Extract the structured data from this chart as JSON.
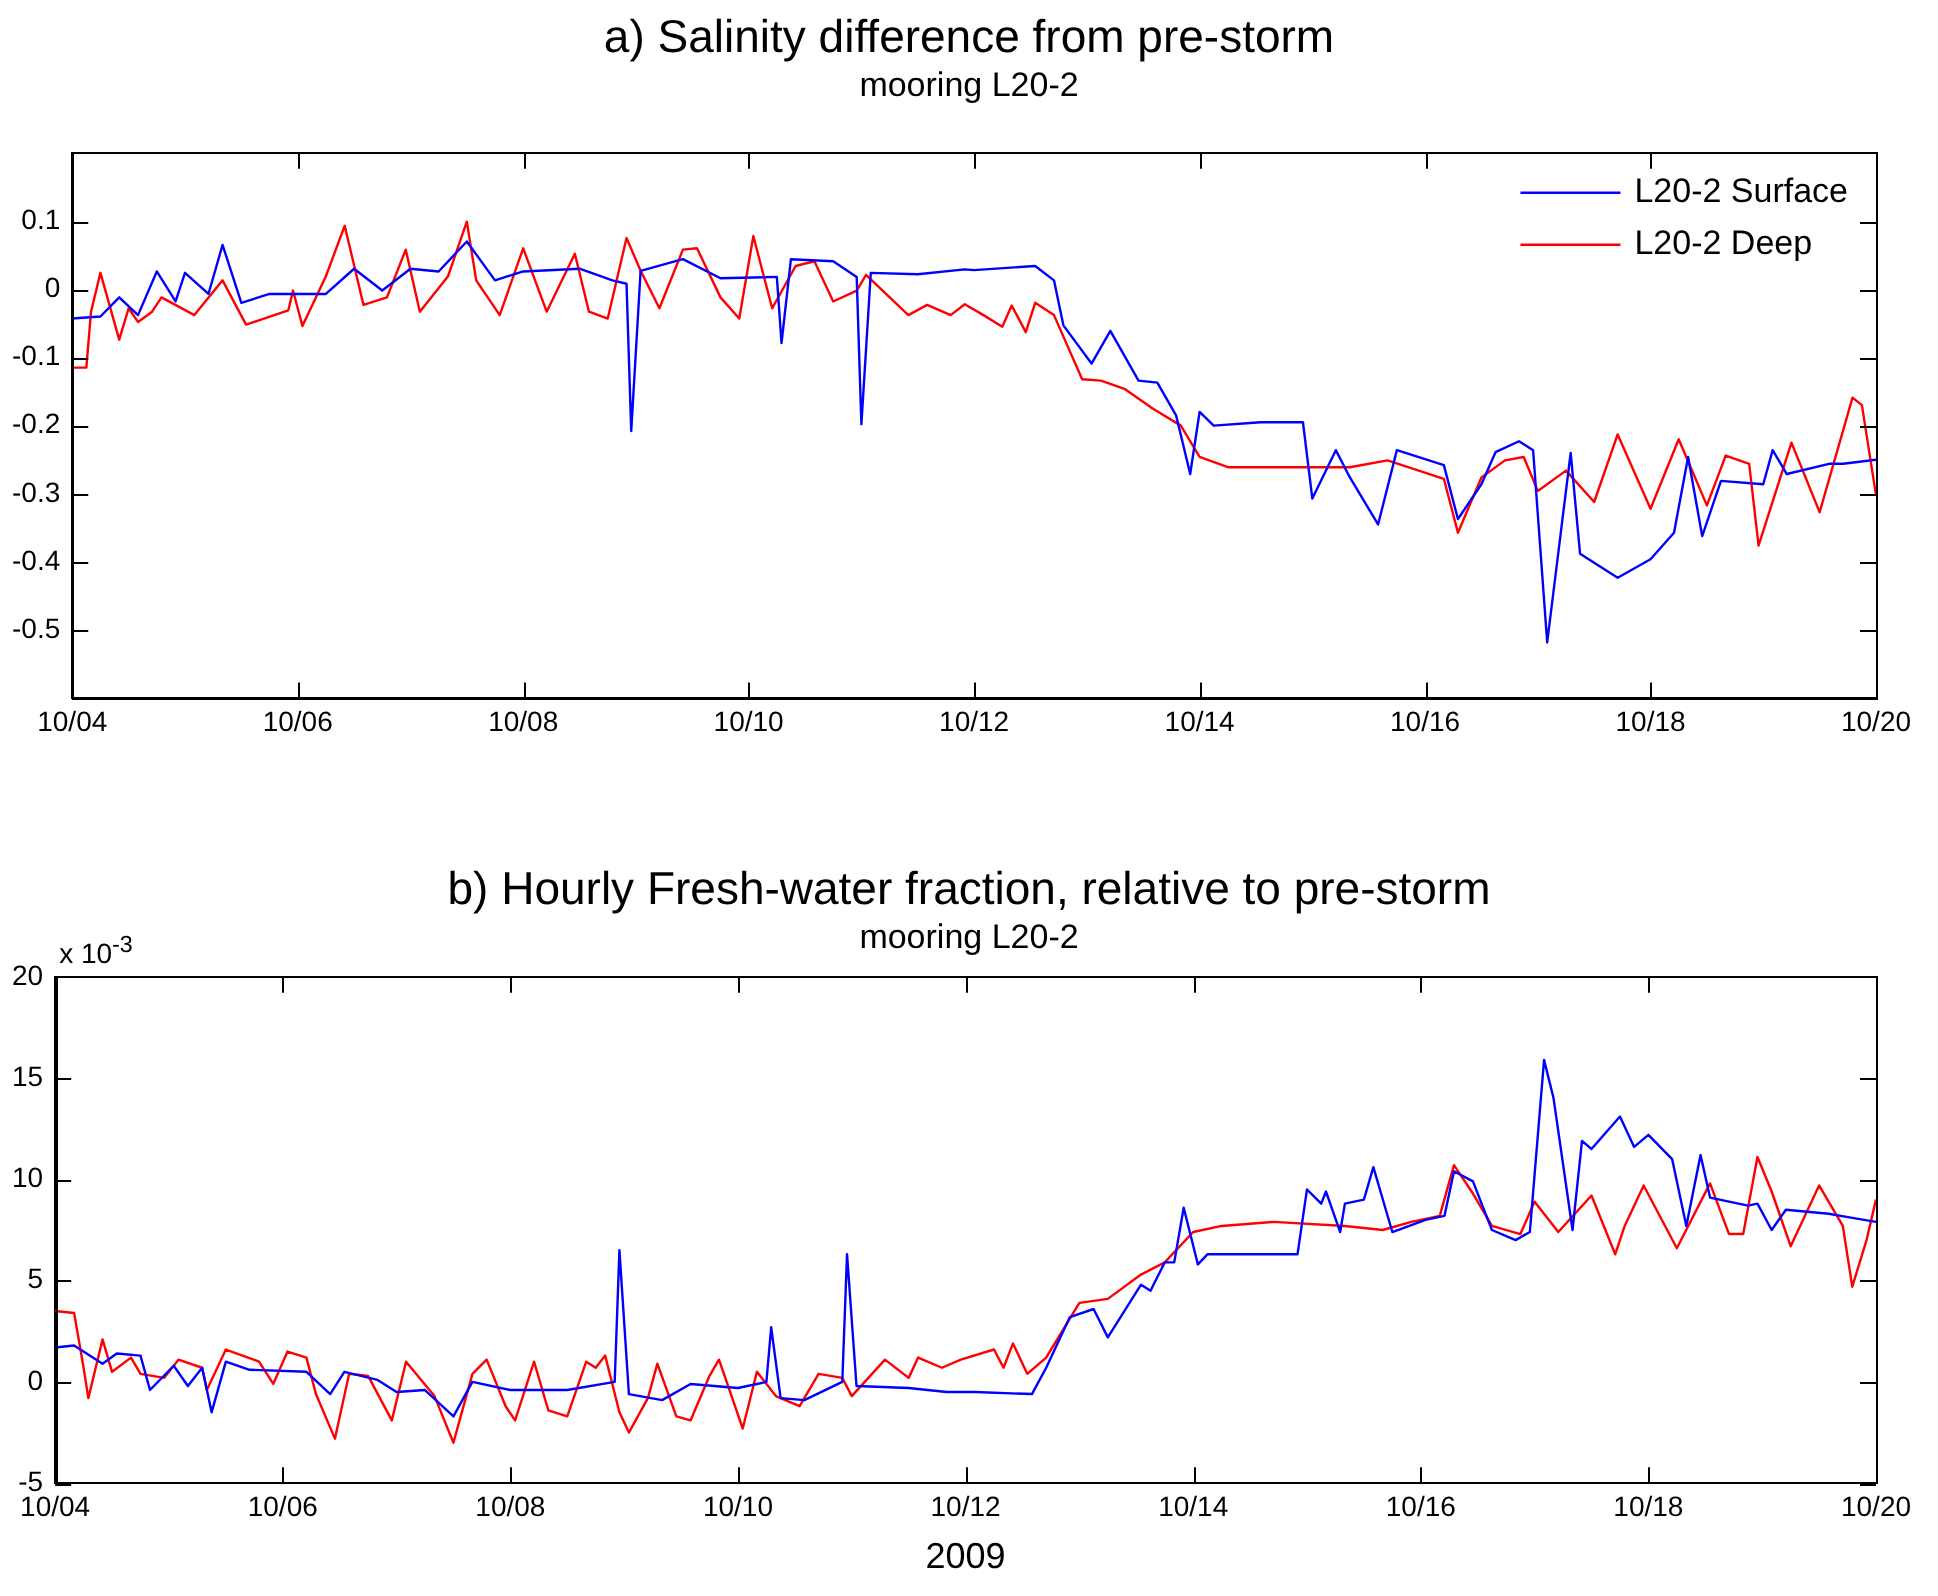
{
  "chart_data": [
    {
      "type": "line",
      "title": "a) Salinity difference from pre-storm",
      "subtitle": "mooring L20-2",
      "legend": "top right",
      "grid": false,
      "xlim": [
        "2009-10-04",
        "2009-10-20"
      ],
      "xticks": [
        {
          "value": "2009-10-04",
          "label": "10/04"
        },
        {
          "value": "2009-10-06",
          "label": "10/06"
        },
        {
          "value": "2009-10-08",
          "label": "10/08"
        },
        {
          "value": "2009-10-10",
          "label": "10/10"
        },
        {
          "value": "2009-10-12",
          "label": "10/12"
        },
        {
          "value": "2009-10-14",
          "label": "10/14"
        },
        {
          "value": "2009-10-16",
          "label": "10/16"
        },
        {
          "value": "2009-10-18",
          "label": "10/18"
        },
        {
          "value": "2009-10-20",
          "label": "10/20"
        }
      ],
      "ylim": [
        -0.6,
        0.2
      ],
      "yticks": [
        -0.5,
        -0.4,
        -0.3,
        -0.2,
        -0.1,
        0,
        0.1
      ],
      "series": [
        {
          "name": "L20-2 Surface",
          "color": "#0000ff",
          "x": [
            "2009-10-04T00:00",
            "2009-10-04T06:00",
            "2009-10-04T10:00",
            "2009-10-04T14:00",
            "2009-10-04T18:00",
            "2009-10-04T22:00",
            "2009-10-05T00:00",
            "2009-10-05T05:00",
            "2009-10-05T08:00",
            "2009-10-05T12:00",
            "2009-10-05T18:00",
            "2009-10-06T06:00",
            "2009-10-06T12:00",
            "2009-10-06T18:00",
            "2009-10-07T00:00",
            "2009-10-07T06:00",
            "2009-10-07T12:00",
            "2009-10-07T18:00",
            "2009-10-08T00:00",
            "2009-10-08T12:00",
            "2009-10-08T19:00",
            "2009-10-08T22:00",
            "2009-10-08T23:00",
            "2009-10-09T01:00",
            "2009-10-09T10:00",
            "2009-10-09T18:00",
            "2009-10-10T06:00",
            "2009-10-10T07:00",
            "2009-10-10T09:00",
            "2009-10-10T18:00",
            "2009-10-10T23:00",
            "2009-10-11T00:00",
            "2009-10-11T02:00",
            "2009-10-11T12:00",
            "2009-10-11T22:00",
            "2009-10-12T00:00",
            "2009-10-12T13:00",
            "2009-10-12T17:00",
            "2009-10-12T19:00",
            "2009-10-13T01:00",
            "2009-10-13T05:00",
            "2009-10-13T11:00",
            "2009-10-13T15:00",
            "2009-10-13T19:00",
            "2009-10-13T22:00",
            "2009-10-14T00:00",
            "2009-10-14T03:00",
            "2009-10-14T13:00",
            "2009-10-14T22:00",
            "2009-10-15T00:00",
            "2009-10-15T05:00",
            "2009-10-15T08:00",
            "2009-10-15T14:00",
            "2009-10-15T18:00",
            "2009-10-16T04:00",
            "2009-10-16T07:00",
            "2009-10-16T12:00",
            "2009-10-16T15:00",
            "2009-10-16T20:00",
            "2009-10-16T23:00",
            "2009-10-17T02:00",
            "2009-10-17T07:00",
            "2009-10-17T09:00",
            "2009-10-17T17:00",
            "2009-10-18T00:00",
            "2009-10-18T05:00",
            "2009-10-18T08:00",
            "2009-10-18T11:00",
            "2009-10-18T15:00",
            "2009-10-19T00:00",
            "2009-10-19T02:00",
            "2009-10-19T05:00",
            "2009-10-19T14:00",
            "2009-10-19T17:00",
            "2009-10-20T00:00"
          ],
          "values": [
            -0.043,
            -0.04,
            -0.012,
            -0.038,
            0.026,
            -0.018,
            0.024,
            -0.007,
            0.065,
            -0.02,
            -0.007,
            -0.007,
            0.03,
            -0.002,
            0.03,
            0.026,
            0.07,
            0.013,
            0.026,
            0.03,
            0.013,
            0.008,
            -0.208,
            0.027,
            0.044,
            0.016,
            0.018,
            -0.079,
            0.044,
            0.041,
            0.018,
            -0.198,
            0.024,
            0.022,
            0.029,
            0.028,
            0.034,
            0.013,
            -0.053,
            -0.109,
            -0.061,
            -0.134,
            -0.137,
            -0.185,
            -0.271,
            -0.18,
            -0.2,
            -0.195,
            -0.195,
            -0.307,
            -0.236,
            -0.276,
            -0.345,
            -0.236,
            -0.258,
            -0.337,
            -0.286,
            -0.239,
            -0.223,
            -0.236,
            -0.518,
            -0.24,
            -0.388,
            -0.423,
            -0.396,
            -0.357,
            -0.246,
            -0.362,
            -0.281,
            -0.286,
            -0.236,
            -0.271,
            -0.256,
            -0.256,
            -0.25
          ]
        },
        {
          "name": "L20-2 Deep",
          "color": "#ff0000",
          "x": [
            "2009-10-04T00:00",
            "2009-10-04T03:00",
            "2009-10-04T04:00",
            "2009-10-04T06:00",
            "2009-10-04T10:00",
            "2009-10-04T12:00",
            "2009-10-04T14:00",
            "2009-10-04T17:00",
            "2009-10-04T19:00",
            "2009-10-05T02:00",
            "2009-10-05T08:00",
            "2009-10-05T13:00",
            "2009-10-05T22:00",
            "2009-10-05T23:00",
            "2009-10-06T01:00",
            "2009-10-06T06:00",
            "2009-10-06T10:00",
            "2009-10-06T14:00",
            "2009-10-06T19:00",
            "2009-10-06T23:00",
            "2009-10-07T02:00",
            "2009-10-07T08:00",
            "2009-10-07T12:00",
            "2009-10-07T14:00",
            "2009-10-07T19:00",
            "2009-10-08T00:00",
            "2009-10-08T05:00",
            "2009-10-08T11:00",
            "2009-10-08T14:00",
            "2009-10-08T18:00",
            "2009-10-08T22:00",
            "2009-10-09T01:00",
            "2009-10-09T05:00",
            "2009-10-09T10:00",
            "2009-10-09T13:00",
            "2009-10-09T18:00",
            "2009-10-09T22:00",
            "2009-10-10T01:00",
            "2009-10-10T05:00",
            "2009-10-10T10:00",
            "2009-10-10T14:00",
            "2009-10-10T18:00",
            "2009-10-10T23:00",
            "2009-10-11T01:00",
            "2009-10-11T10:00",
            "2009-10-11T14:00",
            "2009-10-11T19:00",
            "2009-10-11T22:00",
            "2009-10-12T02:00",
            "2009-10-12T06:00",
            "2009-10-12T08:00",
            "2009-10-12T11:00",
            "2009-10-12T13:00",
            "2009-10-12T17:00",
            "2009-10-12T23:00",
            "2009-10-13T03:00",
            "2009-10-13T08:00",
            "2009-10-13T14:00",
            "2009-10-13T20:00",
            "2009-10-14T00:00",
            "2009-10-14T06:00",
            "2009-10-14T17:00",
            "2009-10-15T08:00",
            "2009-10-15T16:00",
            "2009-10-16T04:00",
            "2009-10-16T07:00",
            "2009-10-16T12:00",
            "2009-10-16T17:00",
            "2009-10-16T21:00",
            "2009-10-17T00:00",
            "2009-10-17T06:00",
            "2009-10-17T12:00",
            "2009-10-17T17:00",
            "2009-10-18T00:00",
            "2009-10-18T06:00",
            "2009-10-18T12:00",
            "2009-10-18T16:00",
            "2009-10-18T21:00",
            "2009-10-18T23:00",
            "2009-10-19T06:00",
            "2009-10-19T12:00",
            "2009-10-19T19:00",
            "2009-10-19T21:00",
            "2009-10-20T00:00"
          ],
          "values": [
            -0.115,
            -0.115,
            -0.033,
            0.024,
            -0.074,
            -0.028,
            -0.048,
            -0.033,
            -0.012,
            -0.038,
            0.013,
            -0.052,
            -0.031,
            -0.002,
            -0.054,
            0.019,
            0.093,
            -0.023,
            -0.012,
            0.058,
            -0.033,
            0.019,
            0.099,
            0.013,
            -0.038,
            0.06,
            -0.033,
            0.052,
            -0.033,
            -0.043,
            0.075,
            0.027,
            -0.028,
            0.058,
            0.06,
            -0.012,
            -0.043,
            0.078,
            -0.028,
            0.034,
            0.041,
            -0.018,
            -0.002,
            0.021,
            -0.038,
            -0.023,
            -0.038,
            -0.022,
            -0.038,
            -0.055,
            -0.024,
            -0.063,
            -0.02,
            -0.038,
            -0.132,
            -0.134,
            -0.146,
            -0.175,
            -0.2,
            -0.246,
            -0.261,
            -0.261,
            -0.261,
            -0.251,
            -0.278,
            -0.357,
            -0.276,
            -0.251,
            -0.246,
            -0.296,
            -0.266,
            -0.312,
            -0.213,
            -0.322,
            -0.22,
            -0.317,
            -0.244,
            -0.256,
            -0.376,
            -0.225,
            -0.327,
            -0.159,
            -0.17,
            -0.302
          ]
        }
      ]
    },
    {
      "type": "line",
      "title": "b) Hourly Fresh-water fraction, relative to pre-storm",
      "subtitle": "mooring L20-2",
      "xlabel": "2009",
      "annotations": [
        "x 10$^{-3}$"
      ],
      "grid": false,
      "xlim": [
        "2009-10-04",
        "2009-10-20"
      ],
      "xticks": [
        {
          "value": "2009-10-04",
          "label": "10/04"
        },
        {
          "value": "2009-10-06",
          "label": "10/06"
        },
        {
          "value": "2009-10-08",
          "label": "10/08"
        },
        {
          "value": "2009-10-10",
          "label": "10/10"
        },
        {
          "value": "2009-10-12",
          "label": "10/12"
        },
        {
          "value": "2009-10-14",
          "label": "10/14"
        },
        {
          "value": "2009-10-16",
          "label": "10/16"
        },
        {
          "value": "2009-10-18",
          "label": "10/18"
        },
        {
          "value": "2009-10-20",
          "label": "10/20"
        }
      ],
      "ylim": [
        -5,
        20
      ],
      "yticks": [
        -5,
        0,
        5,
        10,
        15,
        20
      ],
      "series": [
        {
          "color": "#0000ff",
          "x": [
            "2009-10-04T00:00",
            "2009-10-04T04:00",
            "2009-10-04T10:00",
            "2009-10-04T13:00",
            "2009-10-04T18:00",
            "2009-10-04T20:00",
            "2009-10-05T01:00",
            "2009-10-05T04:00",
            "2009-10-05T07:00",
            "2009-10-05T09:00",
            "2009-10-05T12:00",
            "2009-10-05T17:00",
            "2009-10-06T05:00",
            "2009-10-06T10:00",
            "2009-10-06T13:00",
            "2009-10-06T20:00",
            "2009-10-07T00:00",
            "2009-10-07T06:00",
            "2009-10-07T12:00",
            "2009-10-07T16:00",
            "2009-10-08T00:00",
            "2009-10-08T12:00",
            "2009-10-08T22:00",
            "2009-10-08T23:00",
            "2009-10-09T01:00",
            "2009-10-09T08:00",
            "2009-10-09T14:00",
            "2009-10-10T00:00",
            "2009-10-10T06:00",
            "2009-10-10T07:00",
            "2009-10-10T09:00",
            "2009-10-10T14:00",
            "2009-10-10T22:00",
            "2009-10-10T23:00",
            "2009-10-11T01:00",
            "2009-10-11T12:00",
            "2009-10-11T20:00",
            "2009-10-12T02:00",
            "2009-10-12T14:00",
            "2009-10-12T17:00",
            "2009-10-12T22:00",
            "2009-10-13T03:00",
            "2009-10-13T06:00",
            "2009-10-13T13:00",
            "2009-10-13T15:00",
            "2009-10-13T18:00",
            "2009-10-13T20:00",
            "2009-10-13T22:00",
            "2009-10-14T01:00",
            "2009-10-14T03:00",
            "2009-10-14T12:00",
            "2009-10-14T22:00",
            "2009-10-15T00:00",
            "2009-10-15T03:00",
            "2009-10-15T04:00",
            "2009-10-15T07:00",
            "2009-10-15T08:00",
            "2009-10-15T12:00",
            "2009-10-15T14:00",
            "2009-10-15T18:00",
            "2009-10-16T01:00",
            "2009-10-16T05:00",
            "2009-10-16T07:00",
            "2009-10-16T11:00",
            "2009-10-16T15:00",
            "2009-10-16T20:00",
            "2009-10-16T23:00",
            "2009-10-17T02:00",
            "2009-10-17T04:00",
            "2009-10-17T08:00",
            "2009-10-17T10:00",
            "2009-10-17T12:00",
            "2009-10-17T18:00",
            "2009-10-17T21:00",
            "2009-10-18T00:00",
            "2009-10-18T05:00",
            "2009-10-18T08:00",
            "2009-10-18T11:00",
            "2009-10-18T13:00",
            "2009-10-18T21:00",
            "2009-10-18T23:00",
            "2009-10-19T02:00",
            "2009-10-19T05:00",
            "2009-10-19T14:00",
            "2009-10-19T19:00",
            "2009-10-20T00:00"
          ],
          "values": [
            1.7,
            1.8,
            0.9,
            1.4,
            1.3,
            -0.4,
            0.8,
            -0.2,
            0.7,
            -1.5,
            1.0,
            0.6,
            0.5,
            -0.6,
            0.5,
            0.1,
            -0.5,
            -0.4,
            -1.7,
            0,
            -0.4,
            -0.4,
            0,
            6.5,
            -0.6,
            -0.9,
            -0.1,
            -0.3,
            0,
            2.7,
            -0.8,
            -0.9,
            0,
            6.3,
            -0.2,
            -0.3,
            -0.5,
            -0.5,
            -0.6,
            0.7,
            3.2,
            3.6,
            2.2,
            4.8,
            4.5,
            5.9,
            5.9,
            8.6,
            5.8,
            6.3,
            6.3,
            6.3,
            9.5,
            8.8,
            9.4,
            7.4,
            8.8,
            9.0,
            10.6,
            7.4,
            8.0,
            8.2,
            10.4,
            9.9,
            7.5,
            7.0,
            7.4,
            15.9,
            14.0,
            7.5,
            11.9,
            11.5,
            13.1,
            11.6,
            12.2,
            11.0,
            7.7,
            11.2,
            9.1,
            8.7,
            8.8,
            7.5,
            8.5,
            8.3,
            8.1,
            7.9
          ]
        },
        {
          "color": "#ff0000",
          "x": [
            "2009-10-04T00:00",
            "2009-10-04T04:00",
            "2009-10-04T06:00",
            "2009-10-04T07:00",
            "2009-10-04T10:00",
            "2009-10-04T12:00",
            "2009-10-04T16:00",
            "2009-10-04T18:00",
            "2009-10-04T23:00",
            "2009-10-05T02:00",
            "2009-10-05T07:00",
            "2009-10-05T08:00",
            "2009-10-05T12:00",
            "2009-10-05T19:00",
            "2009-10-05T22:00",
            "2009-10-06T01:00",
            "2009-10-06T05:00",
            "2009-10-06T07:00",
            "2009-10-06T11:00",
            "2009-10-06T14:00",
            "2009-10-06T18:00",
            "2009-10-06T23:00",
            "2009-10-07T02:00",
            "2009-10-07T08:00",
            "2009-10-07T12:00",
            "2009-10-07T16:00",
            "2009-10-07T19:00",
            "2009-10-07T23:00",
            "2009-10-08T01:00",
            "2009-10-08T05:00",
            "2009-10-08T08:00",
            "2009-10-08T12:00",
            "2009-10-08T16:00",
            "2009-10-08T18:00",
            "2009-10-08T20:00",
            "2009-10-08T23:00",
            "2009-10-09T01:00",
            "2009-10-09T05:00",
            "2009-10-09T07:00",
            "2009-10-09T11:00",
            "2009-10-09T14:00",
            "2009-10-09T18:00",
            "2009-10-09T20:00",
            "2009-10-10T01:00",
            "2009-10-10T04:00",
            "2009-10-10T08:00",
            "2009-10-10T13:00",
            "2009-10-10T17:00",
            "2009-10-10T22:00",
            "2009-10-11T00:00",
            "2009-10-11T07:00",
            "2009-10-11T12:00",
            "2009-10-11T14:00",
            "2009-10-11T19:00",
            "2009-10-11T23:00",
            "2009-10-12T06:00",
            "2009-10-12T08:00",
            "2009-10-12T10:00",
            "2009-10-12T13:00",
            "2009-10-12T17:00",
            "2009-10-13T00:00",
            "2009-10-13T06:00",
            "2009-10-13T13:00",
            "2009-10-13T18:00",
            "2009-10-14T00:00",
            "2009-10-14T06:00",
            "2009-10-14T17:00",
            "2009-10-15T08:00",
            "2009-10-15T16:00",
            "2009-10-15T22:00",
            "2009-10-16T04:00",
            "2009-10-16T07:00",
            "2009-10-16T11:00",
            "2009-10-16T15:00",
            "2009-10-16T21:00",
            "2009-10-17T00:00",
            "2009-10-17T05:00",
            "2009-10-17T12:00",
            "2009-10-17T17:00",
            "2009-10-17T19:00",
            "2009-10-17T23:00",
            "2009-10-18T06:00",
            "2009-10-18T13:00",
            "2009-10-18T17:00",
            "2009-10-18T20:00",
            "2009-10-18T23:00",
            "2009-10-19T02:00",
            "2009-10-19T06:00",
            "2009-10-19T12:00",
            "2009-10-19T17:00",
            "2009-10-19T19:00",
            "2009-10-19T22:00",
            "2009-10-20T00:00"
          ],
          "values": [
            3.5,
            3.4,
            0.7,
            -0.8,
            2.1,
            0.5,
            1.2,
            0.4,
            0.2,
            1.1,
            0.7,
            -0.4,
            1.6,
            1.0,
            -0.1,
            1.5,
            1.2,
            -0.6,
            -2.8,
            0.4,
            0.3,
            -1.9,
            1.0,
            -0.7,
            -3.0,
            0.4,
            1.1,
            -1.2,
            -1.9,
            1.0,
            -1.4,
            -1.7,
            1.0,
            0.7,
            1.3,
            -1.5,
            -2.5,
            -0.8,
            0.9,
            -1.7,
            -1.9,
            0.3,
            1.1,
            -2.3,
            0.5,
            -0.7,
            -1.2,
            0.4,
            0.2,
            -0.7,
            1.1,
            0.2,
            1.2,
            0.7,
            1.1,
            1.6,
            0.7,
            1.9,
            0.4,
            1.2,
            3.9,
            4.1,
            5.3,
            5.9,
            7.4,
            7.7,
            7.9,
            7.7,
            7.5,
            7.9,
            8.2,
            10.7,
            9.3,
            7.7,
            7.3,
            8.9,
            7.4,
            9.2,
            6.3,
            7.7,
            9.7,
            6.6,
            9.8,
            7.3,
            7.3,
            11.1,
            9.4,
            6.7,
            9.7,
            7.7,
            4.7,
            7.0,
            9.0
          ]
        }
      ]
    }
  ]
}
